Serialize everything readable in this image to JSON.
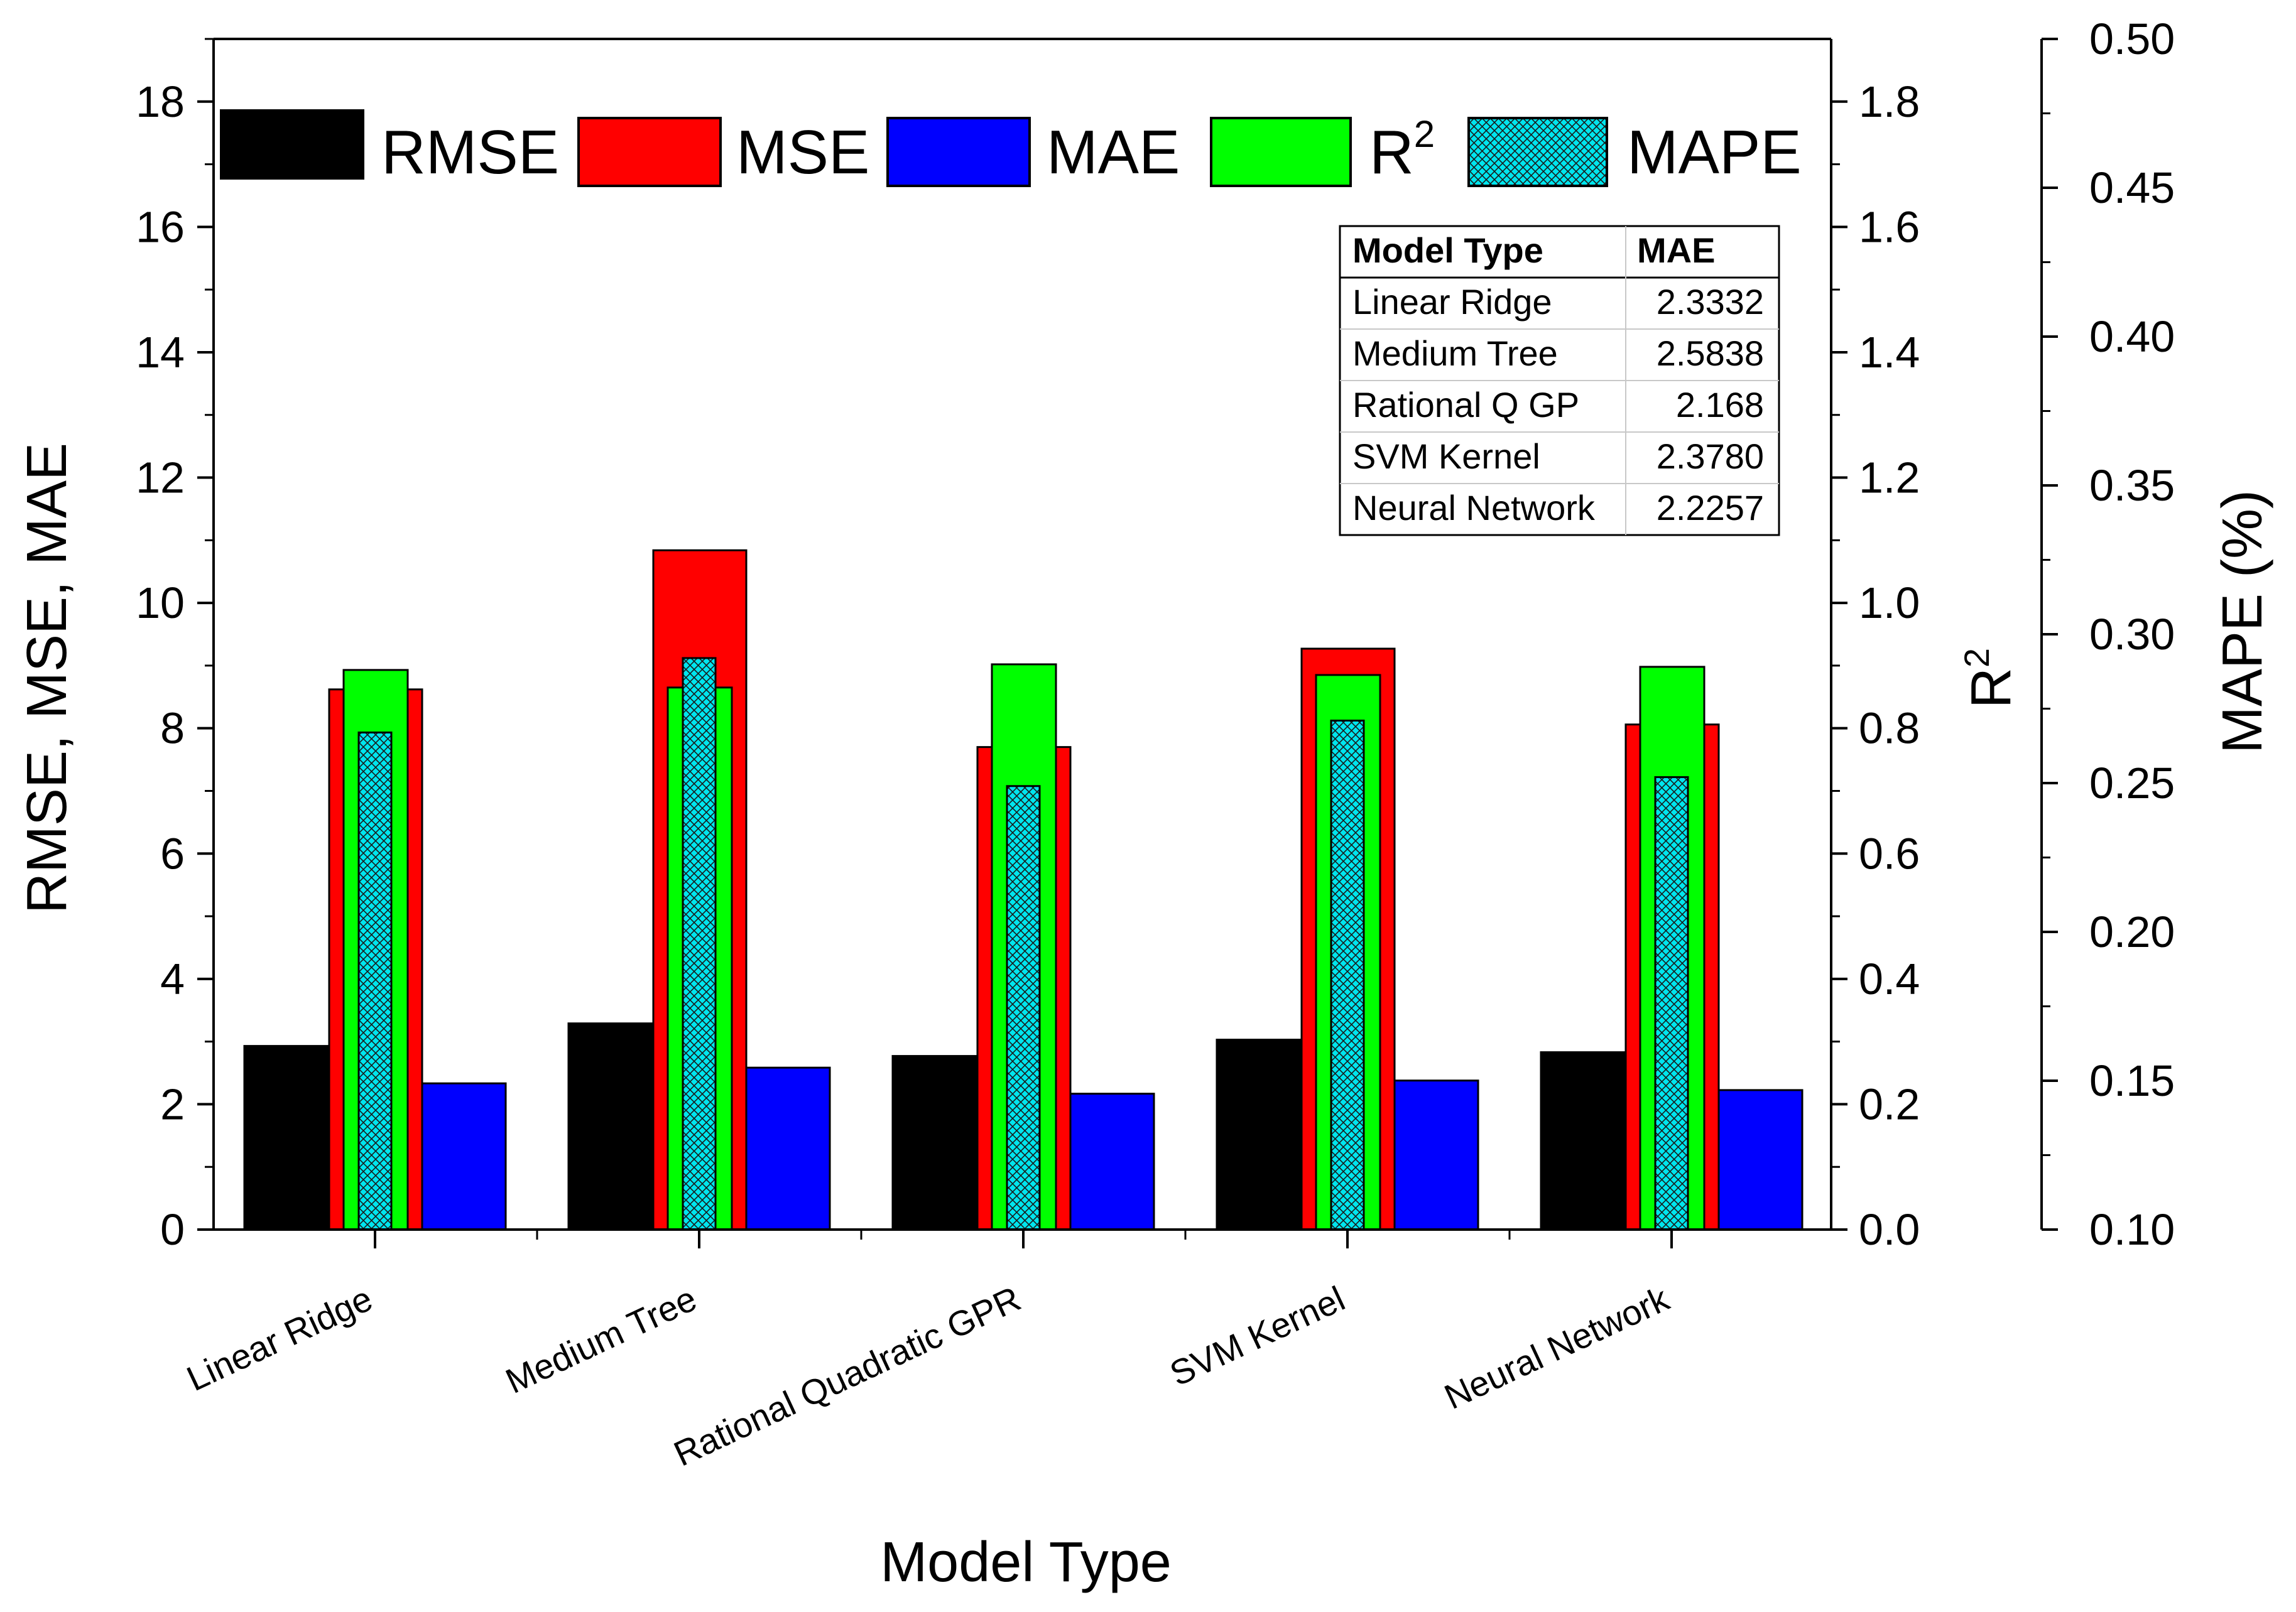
{
  "chart_data": {
    "type": "bar",
    "xlabel": "Model Type",
    "categories": [
      "Linear Ridge",
      "Medium Tree",
      "Rational Quadratic GPR",
      "SVM Kernel",
      "Neural Network"
    ],
    "series": [
      {
        "name": "RMSE",
        "axis": "left",
        "color": "#000000",
        "values": [
          2.93,
          3.29,
          2.77,
          3.03,
          2.83
        ]
      },
      {
        "name": "MSE",
        "axis": "left",
        "color": "#ff0000",
        "values": [
          8.62,
          10.84,
          7.7,
          9.27,
          8.06
        ]
      },
      {
        "name": "MAE",
        "axis": "left",
        "color": "#0000ff",
        "values": [
          2.3332,
          2.5838,
          2.168,
          2.378,
          2.2257
        ]
      },
      {
        "name": "R",
        "superscript": "2",
        "axis": "right1",
        "color": "#00ff00",
        "values": [
          0.893,
          0.865,
          0.902,
          0.885,
          0.898
        ]
      },
      {
        "name": "MAPE",
        "axis": "right2",
        "color": "#00e5ee",
        "pattern": "crosshatch",
        "values": [
          0.267,
          0.292,
          0.249,
          0.271,
          0.252
        ]
      }
    ],
    "axes": {
      "left": {
        "label": "RMSE, MSE, MAE",
        "ylim": [
          0,
          19
        ],
        "ticks": [
          "0",
          "2",
          "4",
          "6",
          "8",
          "10",
          "12",
          "14",
          "16",
          "18"
        ]
      },
      "right1": {
        "label": "R",
        "label_superscript": "2",
        "ylim": [
          0,
          1.9
        ],
        "ticks": [
          "0.0",
          "0.2",
          "0.4",
          "0.6",
          "0.8",
          "1.0",
          "1.2",
          "1.4",
          "1.6",
          "1.8"
        ]
      },
      "right2": {
        "label": "MAPE (%)",
        "ylim": [
          0.1,
          0.5
        ],
        "ticks": [
          "0.10",
          "0.15",
          "0.20",
          "0.25",
          "0.30",
          "0.35",
          "0.40",
          "0.45",
          "0.50"
        ]
      }
    },
    "legend": {
      "placement": "top",
      "entries": [
        "RMSE",
        "MSE",
        "MAE",
        "R2",
        "MAPE"
      ]
    },
    "inset_table": {
      "placement": "top-right",
      "headers": [
        "Model Type",
        "MAE"
      ],
      "rows": [
        [
          "Linear Ridge",
          "2.3332"
        ],
        [
          "Medium Tree",
          "2.5838"
        ],
        [
          "Rational Q GP",
          "2.168"
        ],
        [
          "SVM Kernel",
          "2.3780"
        ],
        [
          "Neural Network",
          "2.2257"
        ]
      ]
    }
  }
}
